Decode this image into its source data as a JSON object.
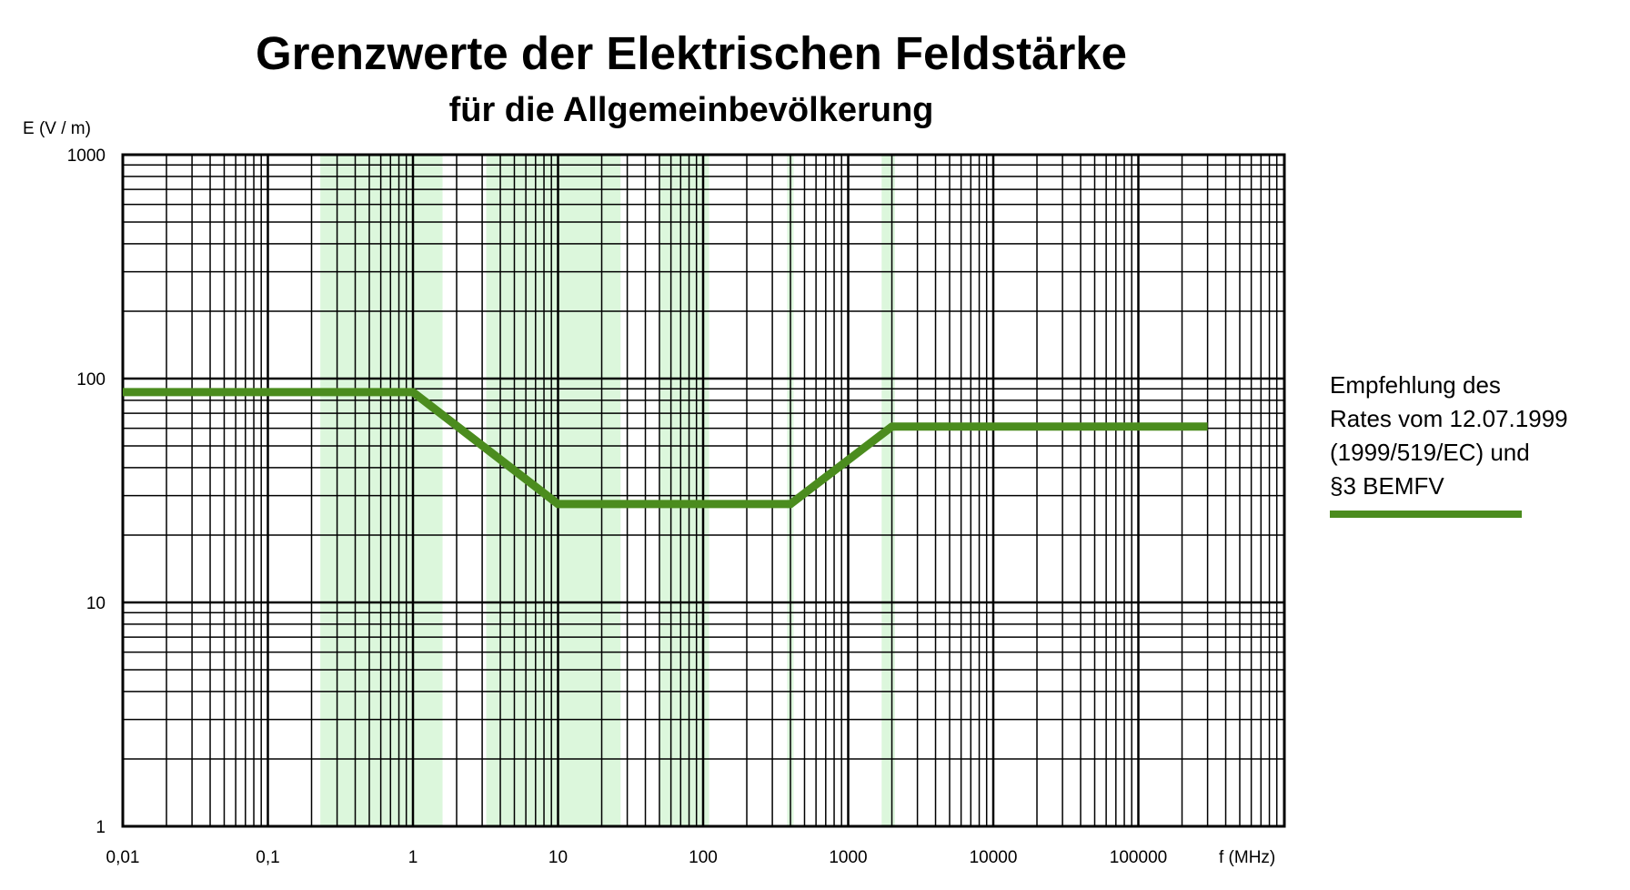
{
  "chart_data": {
    "type": "line",
    "title": "Grenzwerte der Elektrischen Feldstärke",
    "subtitle": "für die Allgemeinbevölkerung",
    "ylabel": "E (V / m)",
    "xlabel": "f (MHz)",
    "x_scale": "log",
    "y_scale": "log",
    "xlim": [
      0.01,
      1000000
    ],
    "ylim": [
      1,
      1000
    ],
    "x_ticks": [
      {
        "value": 0.01,
        "label": "0,01"
      },
      {
        "value": 0.1,
        "label": "0,1"
      },
      {
        "value": 1,
        "label": "1"
      },
      {
        "value": 10,
        "label": "10"
      },
      {
        "value": 100,
        "label": "100"
      },
      {
        "value": 1000,
        "label": "1000"
      },
      {
        "value": 10000,
        "label": "10000"
      },
      {
        "value": 100000,
        "label": "100000"
      }
    ],
    "y_ticks": [
      {
        "value": 1,
        "label": "1"
      },
      {
        "value": 10,
        "label": "10"
      },
      {
        "value": 100,
        "label": "100"
      },
      {
        "value": 1000,
        "label": "1000"
      }
    ],
    "grid": true,
    "shaded_bands_mhz": [
      [
        0.23,
        1.6
      ],
      [
        3.2,
        27
      ],
      [
        50,
        110
      ],
      [
        380,
        420
      ],
      [
        1700,
        2100
      ]
    ],
    "legend_placement": "right",
    "series": [
      {
        "name": "Empfehlung des Rates vom 12.07.1999 (1999/519/EC) und §3 BEMFV",
        "color": "#4b8c1e",
        "x": [
          0.01,
          1,
          10,
          400,
          2000,
          300000
        ],
        "y": [
          87,
          87,
          27.5,
          27.5,
          61,
          61
        ]
      }
    ]
  },
  "legend": {
    "lines": [
      "Empfehlung des",
      "Rates vom 12.07.1999",
      "(1999/519/EC) und",
      "§3 BEMFV"
    ]
  },
  "colors": {
    "band": "#dcf7dc",
    "grid": "#000000",
    "series": "#4b8c1e"
  }
}
